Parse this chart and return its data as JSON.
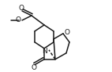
{
  "bg_color": "#ffffff",
  "line_color": "#1a1a1a",
  "lw": 1.1,
  "figsize": [
    1.42,
    0.92
  ],
  "dpi": 100,
  "xlim": [
    0,
    142
  ],
  "ylim": [
    0,
    92
  ]
}
